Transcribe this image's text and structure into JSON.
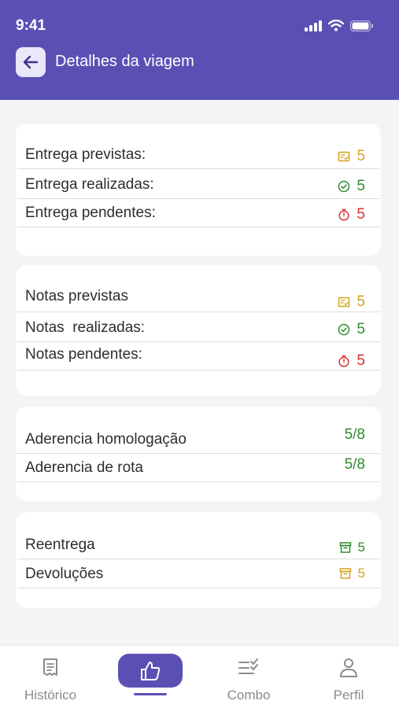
{
  "status_bar": {
    "time": "9:41"
  },
  "header": {
    "title": "Detalhes da viagem"
  },
  "cards": {
    "entregas": {
      "previstas": {
        "label": "Entrega previstas:",
        "value": "5"
      },
      "realizadas": {
        "label": "Entrega realizadas:",
        "value": "5"
      },
      "pendentes": {
        "label": "Entrega pendentes:",
        "value": "5"
      }
    },
    "notas": {
      "previstas": {
        "label": "Notas previstas",
        "value": "5"
      },
      "realizadas": {
        "label": "Notas  realizadas:",
        "value": "5"
      },
      "pendentes": {
        "label": "Notas pendentes:",
        "value": "5"
      }
    },
    "aderencia": {
      "homologacao": {
        "label": "Aderencia homologação",
        "value": "5/8"
      },
      "rota": {
        "label": "Aderencia de rota",
        "value": "5/8"
      }
    },
    "retornos": {
      "reentrega": {
        "label": "Reentrega",
        "value": "5"
      },
      "devolucoes": {
        "label": "Devoluções",
        "value": "5"
      }
    }
  },
  "tabbar": {
    "historico": "Histórico",
    "combo": "Combo",
    "perfil": "Perfil"
  },
  "colors": {
    "primary": "#5a50b4",
    "yellow": "#d4a21c",
    "green": "#2e8b2e",
    "red": "#d93131"
  }
}
